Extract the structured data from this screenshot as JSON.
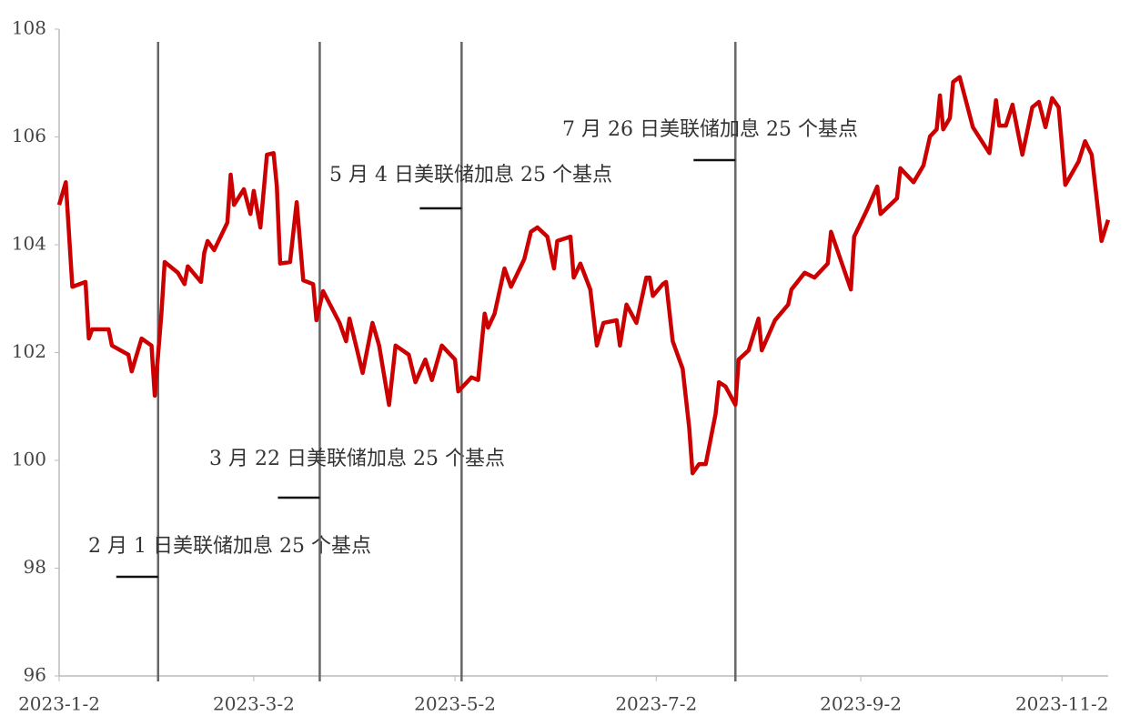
{
  "chart_data": {
    "type": "line",
    "x": [
      "2023-01-02",
      "2023-01-04",
      "2023-01-06",
      "2023-01-10",
      "2023-01-11",
      "2023-01-12",
      "2023-01-17",
      "2023-01-18",
      "2023-01-23",
      "2023-01-24",
      "2023-01-27",
      "2023-01-30",
      "2023-01-31",
      "2023-02-02",
      "2023-02-03",
      "2023-02-07",
      "2023-02-09",
      "2023-02-10",
      "2023-02-14",
      "2023-02-15",
      "2023-02-16",
      "2023-02-18",
      "2023-02-22",
      "2023-02-23",
      "2023-02-24",
      "2023-02-27",
      "2023-03-01",
      "2023-03-02",
      "2023-03-04",
      "2023-03-06",
      "2023-03-08",
      "2023-03-09",
      "2023-03-10",
      "2023-03-13",
      "2023-03-15",
      "2023-03-17",
      "2023-03-20",
      "2023-03-21",
      "2023-03-23",
      "2023-03-28",
      "2023-03-30",
      "2023-03-31",
      "2023-04-04",
      "2023-04-07",
      "2023-04-09",
      "2023-04-12",
      "2023-04-14",
      "2023-04-18",
      "2023-04-20",
      "2023-04-23",
      "2023-04-25",
      "2023-04-28",
      "2023-05-02",
      "2023-05-03",
      "2023-05-07",
      "2023-05-09",
      "2023-05-11",
      "2023-05-12",
      "2023-05-14",
      "2023-05-17",
      "2023-05-19",
      "2023-05-23",
      "2023-05-25",
      "2023-05-27",
      "2023-05-30",
      "2023-06-01",
      "2023-06-02",
      "2023-06-06",
      "2023-06-07",
      "2023-06-09",
      "2023-06-12",
      "2023-06-14",
      "2023-06-16",
      "2023-06-20",
      "2023-06-21",
      "2023-06-23",
      "2023-06-26",
      "2023-06-29",
      "2023-06-30",
      "2023-07-01",
      "2023-07-04",
      "2023-07-05",
      "2023-07-07",
      "2023-07-10",
      "2023-07-12",
      "2023-07-13",
      "2023-07-15",
      "2023-07-17",
      "2023-07-20",
      "2023-07-21",
      "2023-07-23",
      "2023-07-26",
      "2023-07-27",
      "2023-07-30",
      "2023-08-02",
      "2023-08-03",
      "2023-08-07",
      "2023-08-11",
      "2023-08-12",
      "2023-08-16",
      "2023-08-19",
      "2023-08-23",
      "2023-08-24",
      "2023-08-30",
      "2023-08-31",
      "2023-09-04",
      "2023-09-07",
      "2023-09-08",
      "2023-09-13",
      "2023-09-14",
      "2023-09-18",
      "2023-09-21",
      "2023-09-23",
      "2023-09-25",
      "2023-09-26",
      "2023-09-27",
      "2023-09-29",
      "2023-09-30",
      "2023-10-02",
      "2023-10-06",
      "2023-10-11",
      "2023-10-13",
      "2023-10-14",
      "2023-10-16",
      "2023-10-18",
      "2023-10-21",
      "2023-10-24",
      "2023-10-26",
      "2023-10-28",
      "2023-10-30",
      "2023-11-01",
      "2023-11-03",
      "2023-11-07",
      "2023-11-09",
      "2023-11-11",
      "2023-11-14",
      "2023-11-16"
    ],
    "series": [
      {
        "color": "#cc0000",
        "values": [
          104.74,
          105.16,
          103.22,
          103.31,
          102.26,
          102.43,
          102.43,
          102.13,
          101.96,
          101.65,
          102.26,
          102.13,
          101.2,
          102.72,
          103.68,
          103.48,
          103.27,
          103.6,
          103.31,
          103.85,
          104.07,
          103.9,
          104.41,
          105.3,
          104.74,
          105.03,
          104.57,
          105.0,
          104.32,
          105.67,
          105.7,
          105.08,
          103.65,
          103.68,
          104.79,
          103.34,
          103.27,
          102.6,
          103.14,
          102.55,
          102.21,
          102.63,
          101.62,
          102.55,
          102.13,
          101.03,
          102.13,
          101.96,
          101.45,
          101.87,
          101.49,
          102.13,
          101.87,
          101.28,
          101.54,
          101.49,
          102.72,
          102.46,
          102.72,
          103.56,
          103.22,
          103.73,
          104.24,
          104.32,
          104.15,
          103.56,
          104.07,
          104.15,
          103.39,
          103.65,
          103.17,
          102.13,
          102.55,
          102.6,
          102.13,
          102.89,
          102.55,
          103.39,
          103.39,
          103.05,
          103.27,
          103.31,
          102.21,
          101.7,
          100.61,
          99.76,
          99.93,
          99.93,
          100.86,
          101.45,
          101.37,
          101.03,
          101.87,
          102.04,
          102.63,
          102.04,
          102.6,
          102.89,
          103.17,
          103.48,
          103.39,
          103.65,
          104.24,
          103.17,
          104.15,
          104.66,
          105.08,
          104.57,
          104.86,
          105.42,
          105.16,
          105.47,
          106.01,
          106.14,
          106.77,
          106.14,
          106.35,
          107.02,
          107.11,
          106.18,
          105.7,
          106.68,
          106.21,
          106.21,
          106.6,
          105.67,
          106.55,
          106.65,
          106.18,
          106.72,
          106.55,
          105.11,
          105.54,
          105.92,
          105.67,
          104.07,
          104.46
        ]
      }
    ],
    "xlim": [
      "2023-01-02",
      "2023-11-16"
    ],
    "xticks": [
      {
        "value": "2023-01-02",
        "label": "2023-1-2"
      },
      {
        "value": "2023-03-02",
        "label": "2023-3-2"
      },
      {
        "value": "2023-05-02",
        "label": "2023-5-2"
      },
      {
        "value": "2023-07-02",
        "label": "2023-7-2"
      },
      {
        "value": "2023-09-02",
        "label": "2023-9-2"
      },
      {
        "value": "2023-11-02",
        "label": "2023-11-2"
      }
    ],
    "ylim": [
      96,
      108
    ],
    "yticks": [
      96,
      98,
      100,
      102,
      104,
      106,
      108
    ],
    "grid": false,
    "annotations": [
      {
        "x": "2023-02-01",
        "text": "2 月 1 日美联储加息 25 个基点"
      },
      {
        "x": "2023-03-22",
        "text": "3 月 22 日美联储加息 25 个基点"
      },
      {
        "x": "2023-05-04",
        "text": "5 月 4 日美联储加息 25 个基点"
      },
      {
        "x": "2023-07-26",
        "text": "7 月 26 日美联储加息 25 个基点"
      }
    ]
  }
}
